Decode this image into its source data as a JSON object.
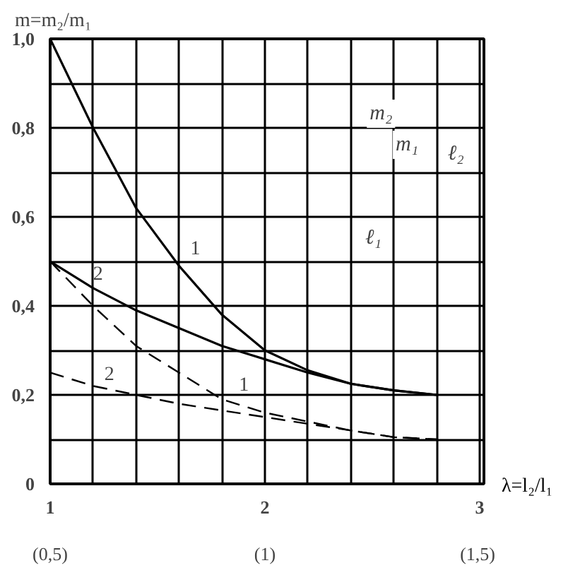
{
  "chart_data": {
    "type": "line",
    "ylabel": "m=m₂/m₁",
    "xlabel": "λ=l₂/l₁",
    "x": [
      1,
      1.2,
      1.4,
      1.6,
      1.8,
      2.0,
      2.2,
      2.4,
      2.6,
      2.8
    ],
    "series": [
      {
        "name": "1",
        "color": "#000000",
        "line_style": "solid",
        "values": [
          1.0,
          0.8,
          0.62,
          0.49,
          0.38,
          0.3,
          0.255,
          0.225,
          0.21,
          0.2
        ]
      },
      {
        "name": "2",
        "color": "#000000",
        "line_style": "solid",
        "values": [
          0.5,
          0.44,
          0.39,
          0.35,
          0.31,
          0.28,
          0.25,
          0.225,
          0.21,
          0.2
        ]
      },
      {
        "name": "1",
        "color": "#000000",
        "line_style": "dashed",
        "values": [
          0.5,
          0.4,
          0.31,
          0.25,
          0.19,
          0.16,
          0.14,
          0.12,
          0.105,
          0.1
        ]
      },
      {
        "name": "2",
        "color": "#000000",
        "line_style": "dashed",
        "values": [
          0.25,
          0.22,
          0.2,
          0.18,
          0.165,
          0.15,
          0.135,
          0.12,
          0.105,
          0.1
        ]
      }
    ],
    "xlim": [
      1,
      3.02
    ],
    "ylim": [
      0,
      1.0
    ],
    "xticks": [
      1,
      {
        "value": 1.2,
        "label": null
      },
      {
        "value": 1.4,
        "label": null
      },
      {
        "value": 1.6,
        "label": null
      },
      {
        "value": 1.8,
        "label": null
      },
      2,
      {
        "value": 2.2,
        "label": null
      },
      {
        "value": 2.4,
        "label": null
      },
      {
        "value": 2.6,
        "label": null
      },
      {
        "value": 2.8,
        "label": null
      },
      3
    ],
    "x2lim": [
      0.5,
      1.51
    ],
    "x2ticks": [
      {
        "value": 0.5,
        "label": "(0,5)"
      },
      {
        "value": 1,
        "label": "(1)"
      },
      {
        "value": 1.5,
        "label": "(1,5)"
      }
    ],
    "yticks": [
      0,
      {
        "value": 0.1,
        "label": null
      },
      {
        "value": 0.2,
        "label": "0,2"
      },
      {
        "value": 0.3,
        "label": null
      },
      {
        "value": 0.4,
        "label": "0,4"
      },
      {
        "value": 0.5,
        "label": null
      },
      {
        "value": 0.6,
        "label": "0,6"
      },
      {
        "value": 0.7,
        "label": null
      },
      {
        "value": 0.8,
        "label": "0,8"
      },
      {
        "value": 0.9,
        "label": null
      },
      {
        "value": 1.0,
        "label": "1,0"
      }
    ],
    "grid": true,
    "annotations": [
      "m₂",
      "m₁",
      "ℓ₂",
      "ℓ₁"
    ]
  }
}
